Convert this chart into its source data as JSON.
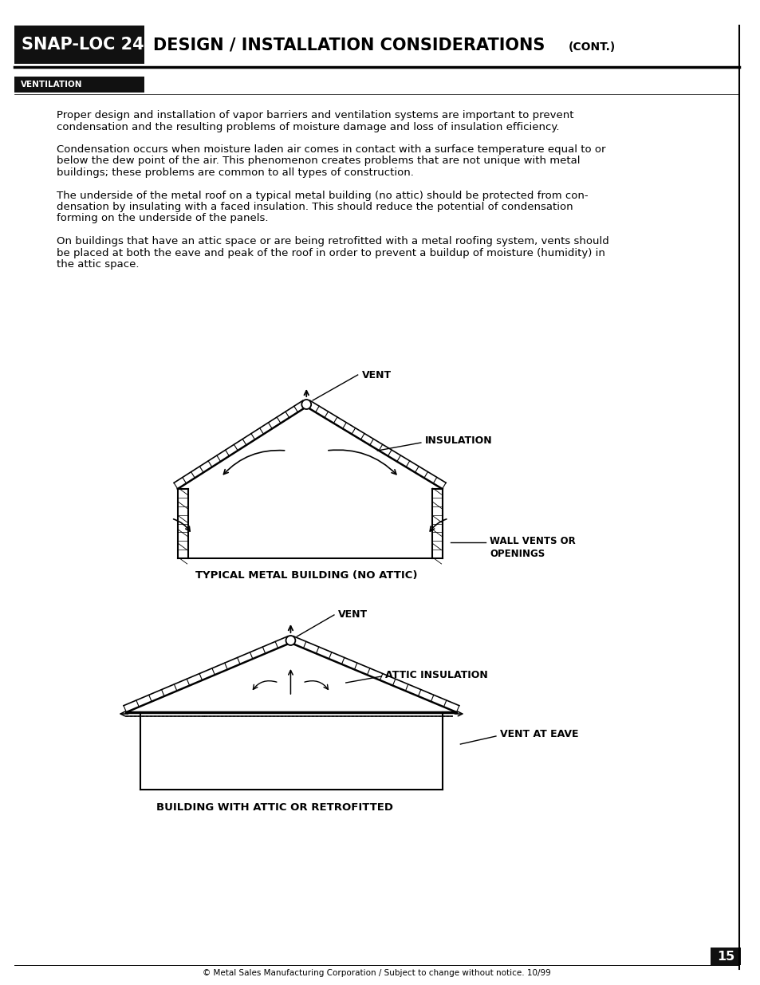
{
  "page_title_box": "SNAP-LOC 24",
  "page_title_main": "DESIGN / INSTALLATION CONSIDERATIONS",
  "page_title_cont": "(CONT.)",
  "section_label": "VENTILATION",
  "para1": "Proper design and installation of vapor barriers and ventilation systems are important to prevent\ncondensation and the resulting problems of moisture damage and loss of insulation efficiency.",
  "para2": "Condensation occurs when moisture laden air comes in contact with a surface temperature equal to or\nbelow the dew point of the air. This phenomenon creates problems that are not unique with metal\nbuildings; these problems are common to all types of construction.",
  "para3": "The underside of the metal roof on a typical metal building (no attic) should be protected from con-\ndensation by insulating with a faced insulation. This should reduce the potential of condensation\nforming on the underside of the panels.",
  "para4": "On buildings that have an attic space or are being retrofitted with a metal roofing system, vents should\nbe placed at both the eave and peak of the roof in order to prevent a buildup of moisture (humidity) in\nthe attic space.",
  "diag1_caption": "TYPICAL METAL BUILDING (NO ATTIC)",
  "diag2_caption": "BUILDING WITH ATTIC OR RETROFITTED",
  "footer": "© Metal Sales Manufacturing Corporation / Subject to change without notice. 10/99",
  "page_num": "15",
  "bg_color": "#ffffff",
  "text_color": "#000000",
  "header_bg": "#111111",
  "header_text_color": "#ffffff",
  "section_bg": "#111111",
  "section_text_color": "#ffffff"
}
